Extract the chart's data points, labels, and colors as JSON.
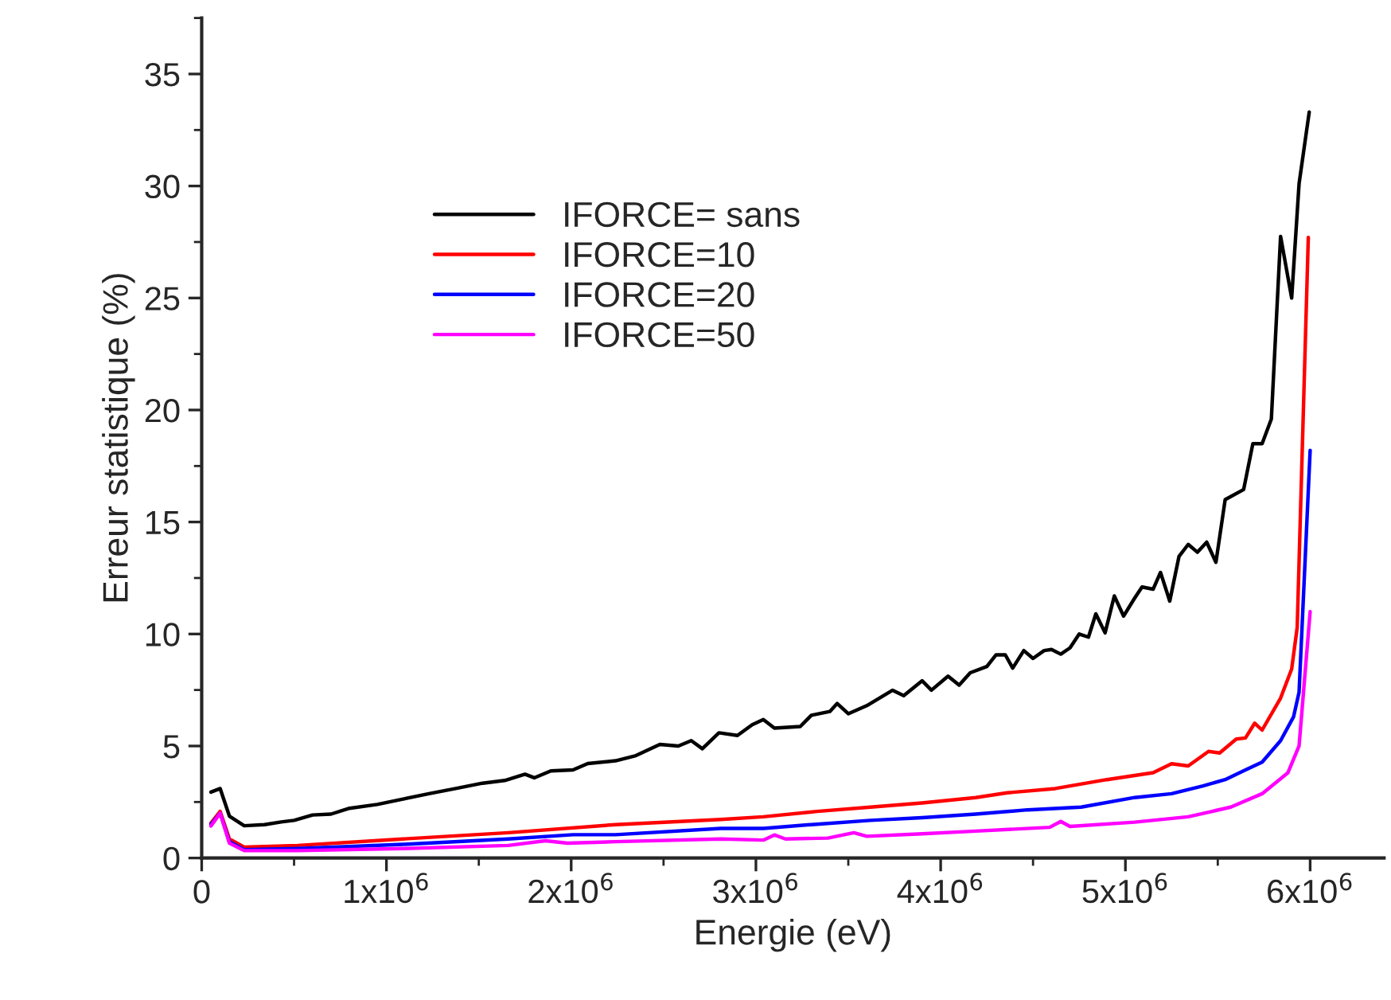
{
  "chart_data": {
    "type": "line",
    "xlabel": "Energie (eV)",
    "ylabel": "Erreur statistique (%)",
    "xlim": [
      0,
      6400000
    ],
    "ylim": [
      0,
      37.5
    ],
    "xticks": [
      0,
      {
        "value": 1000000,
        "label": "1x10$^{6}$"
      },
      {
        "value": 2000000,
        "label": "2x10$^{6}$"
      },
      {
        "value": 3000000,
        "label": "3x10$^{6}$"
      },
      {
        "value": 4000000,
        "label": "4x10$^{6}$"
      },
      {
        "value": 5000000,
        "label": "5x10$^{6}$"
      },
      {
        "value": 6000000,
        "label": "6x10$^{6}$"
      }
    ],
    "yticks": [
      0,
      5,
      10,
      15,
      20,
      25,
      30,
      35
    ],
    "grid": false,
    "legend": "top left",
    "marker": "none",
    "line_style": "solid",
    "series": [
      {
        "name": "IFORCE= sans",
        "color": "#000000",
        "x": [
          50000,
          100000,
          150000,
          230000,
          340000,
          430000,
          500000,
          600000,
          700000,
          800000,
          950000,
          1090000,
          1230000,
          1380000,
          1520000,
          1640000,
          1750000,
          1800000,
          1890000,
          2010000,
          2090000,
          2240000,
          2350000,
          2480000,
          2580000,
          2650000,
          2710000,
          2800000,
          2900000,
          2980000,
          3040000,
          3100000,
          3240000,
          3300000,
          3400000,
          3440000,
          3500000,
          3600000,
          3740000,
          3800000,
          3900000,
          3950000,
          4040000,
          4100000,
          4160000,
          4250000,
          4300000,
          4350000,
          4390000,
          4450000,
          4500000,
          4560000,
          4600000,
          4650000,
          4700000,
          4750000,
          4800000,
          4840000,
          4890000,
          4940000,
          4990000,
          5050000,
          5090000,
          5150000,
          5190000,
          5240000,
          5290000,
          5340000,
          5390000,
          5440000,
          5490000,
          5540000,
          5640000,
          5690000,
          5740000,
          5790000,
          5840000,
          5900000,
          5940000,
          5995000
        ],
        "values": [
          2.94,
          3.1,
          1.87,
          1.44,
          1.49,
          1.61,
          1.68,
          1.92,
          1.96,
          2.22,
          2.39,
          2.63,
          2.87,
          3.11,
          3.34,
          3.46,
          3.74,
          3.58,
          3.89,
          3.93,
          4.22,
          4.34,
          4.57,
          5.07,
          5.0,
          5.24,
          4.88,
          5.59,
          5.47,
          5.95,
          6.18,
          5.8,
          5.87,
          6.37,
          6.54,
          6.9,
          6.44,
          6.8,
          7.49,
          7.25,
          7.91,
          7.49,
          8.12,
          7.72,
          8.27,
          8.55,
          9.07,
          9.07,
          8.48,
          9.26,
          8.91,
          9.26,
          9.31,
          9.1,
          9.38,
          10.0,
          9.86,
          10.9,
          10.05,
          11.7,
          10.8,
          11.6,
          12.1,
          12.0,
          12.75,
          11.47,
          13.46,
          14.0,
          13.65,
          14.1,
          13.2,
          16.0,
          16.45,
          18.5,
          18.5,
          19.6,
          27.75,
          25.0,
          30.1,
          33.3
        ]
      },
      {
        "name": "IFORCE=10",
        "color": "#ff0000",
        "x": [
          50000,
          100000,
          150000,
          230000,
          520000,
          1090000,
          1660000,
          2240000,
          2810000,
          3040000,
          3330000,
          3620000,
          3900000,
          4190000,
          4360000,
          4620000,
          4900000,
          5150000,
          5250000,
          5340000,
          5450000,
          5510000,
          5600000,
          5650000,
          5700000,
          5740000,
          5840000,
          5900000,
          5930000,
          5990000
        ],
        "values": [
          1.56,
          2.08,
          0.85,
          0.49,
          0.56,
          0.85,
          1.13,
          1.49,
          1.72,
          1.84,
          2.08,
          2.27,
          2.46,
          2.7,
          2.91,
          3.1,
          3.5,
          3.81,
          4.21,
          4.11,
          4.76,
          4.69,
          5.31,
          5.36,
          6.02,
          5.71,
          7.14,
          8.44,
          10.3,
          27.7
        ]
      },
      {
        "name": "IFORCE=20",
        "color": "#0000ff",
        "x": [
          50000,
          100000,
          150000,
          230000,
          520000,
          1090000,
          1660000,
          2010000,
          2240000,
          2810000,
          3040000,
          3330000,
          3620000,
          3900000,
          4190000,
          4470000,
          4760000,
          5050000,
          5250000,
          5420000,
          5540000,
          5650000,
          5740000,
          5840000,
          5910000,
          5940000,
          6000000
        ],
        "values": [
          1.5,
          2.0,
          0.73,
          0.37,
          0.42,
          0.61,
          0.85,
          1.04,
          1.04,
          1.32,
          1.32,
          1.51,
          1.68,
          1.8,
          1.96,
          2.15,
          2.27,
          2.7,
          2.87,
          3.22,
          3.5,
          3.93,
          4.28,
          5.24,
          6.3,
          7.4,
          18.2
        ]
      },
      {
        "name": "IFORCE=50",
        "color": "#ff00ff",
        "x": [
          50000,
          100000,
          150000,
          230000,
          520000,
          1090000,
          1660000,
          1860000,
          1980000,
          2240000,
          2810000,
          3040000,
          3100000,
          3160000,
          3390000,
          3530000,
          3600000,
          3900000,
          4190000,
          4590000,
          4650000,
          4700000,
          5050000,
          5340000,
          5570000,
          5740000,
          5880000,
          5940000,
          6000000
        ],
        "values": [
          1.43,
          2.0,
          0.66,
          0.33,
          0.33,
          0.42,
          0.56,
          0.77,
          0.66,
          0.73,
          0.85,
          0.8,
          1.03,
          0.85,
          0.89,
          1.13,
          0.97,
          1.08,
          1.2,
          1.37,
          1.63,
          1.41,
          1.6,
          1.84,
          2.27,
          2.87,
          3.81,
          5.0,
          11.0
        ]
      }
    ]
  }
}
